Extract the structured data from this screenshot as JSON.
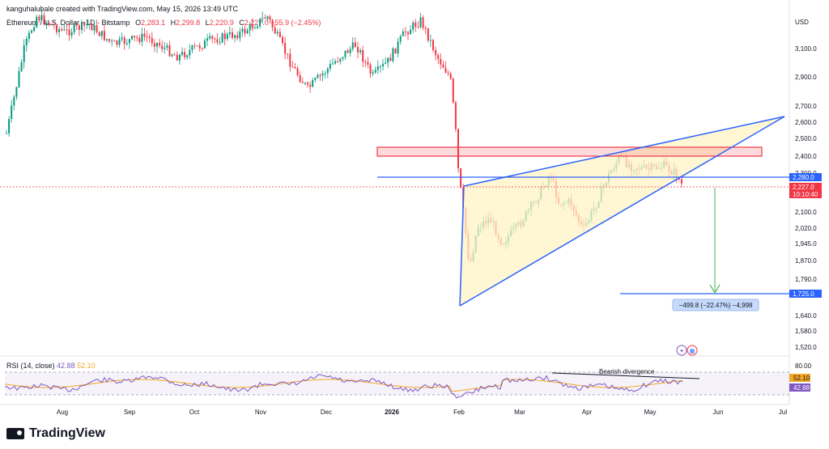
{
  "header": {
    "credit": "kanguhalubale created with TradingView.com, May 15, 2026 13:49 UTC",
    "symbol": "Ethereum / U.S. Dollar · 1D · Bitstamp",
    "o_label": "O",
    "o_value": "2,283.1",
    "h_label": "H",
    "h_value": "2,299.8",
    "l_label": "L",
    "l_value": "2,220.9",
    "c_label": "C",
    "c_value": "2,227.0",
    "change": "−55.9 (−2.45%)"
  },
  "rsi": {
    "label": "RSI (14, close)",
    "value1": "42.88",
    "value2": "52.10"
  },
  "brand": "TradingView",
  "colors": {
    "up": "#089981",
    "down": "#f23645",
    "line": "#2962ff",
    "zone": "#f23645",
    "rsi": "#7e57c2",
    "rsi_ma": "#f5a623",
    "arrow": "#4caf50"
  },
  "chart_data": {
    "type": "candlestick",
    "currency_label": "USD",
    "y_ticks": [
      "3,100.0",
      "2,900.0",
      "2,700.0",
      "2,600.0",
      "2,500.0",
      "2,400.0",
      "2,300.0",
      "2,100.0",
      "2,020.0",
      "1,945.0",
      "1,870.0",
      "1,790.0",
      "1,640.0",
      "1,580.0",
      "1,520.0"
    ],
    "x_ticks": [
      "Aug",
      "Sep",
      "Oct",
      "Nov",
      "Dec",
      "2026",
      "Feb",
      "Mar",
      "Apr",
      "May",
      "Jun",
      "Jul"
    ],
    "price_labels": [
      {
        "text": "2,280.0",
        "color": "#2962ff"
      },
      {
        "text": "2,227.0",
        "color": "#f23645"
      },
      {
        "text": "10:10:40",
        "color": "#f23645"
      },
      {
        "text": "1,725.0",
        "color": "#2962ff"
      }
    ],
    "last_close": 2227.0,
    "horizontal_line": 2280.0,
    "target": 1725.0,
    "resistance_zone": [
      2398,
      2430
    ],
    "measure_label": "−499.8 (−22.47%) −4,998",
    "annotation": "Bearish divergence",
    "rsi_axis_labels": [
      "80.00",
      "52.10",
      "42.88"
    ],
    "rsi_levels": [
      70,
      30
    ],
    "series_summary": [
      {
        "period": "Aug",
        "value": 2900
      },
      {
        "period": "Sep",
        "value": 3000
      },
      {
        "period": "Oct",
        "value": 3150
      },
      {
        "period": "Nov",
        "value": 2950
      },
      {
        "period": "Dec",
        "value": 2900
      },
      {
        "period": "Jan",
        "value": 3100
      },
      {
        "period": "Feb",
        "value": 2000
      },
      {
        "period": "Mar",
        "value": 2150
      },
      {
        "period": "Apr",
        "value": 2330
      },
      {
        "period": "May",
        "value": 2280
      }
    ]
  }
}
